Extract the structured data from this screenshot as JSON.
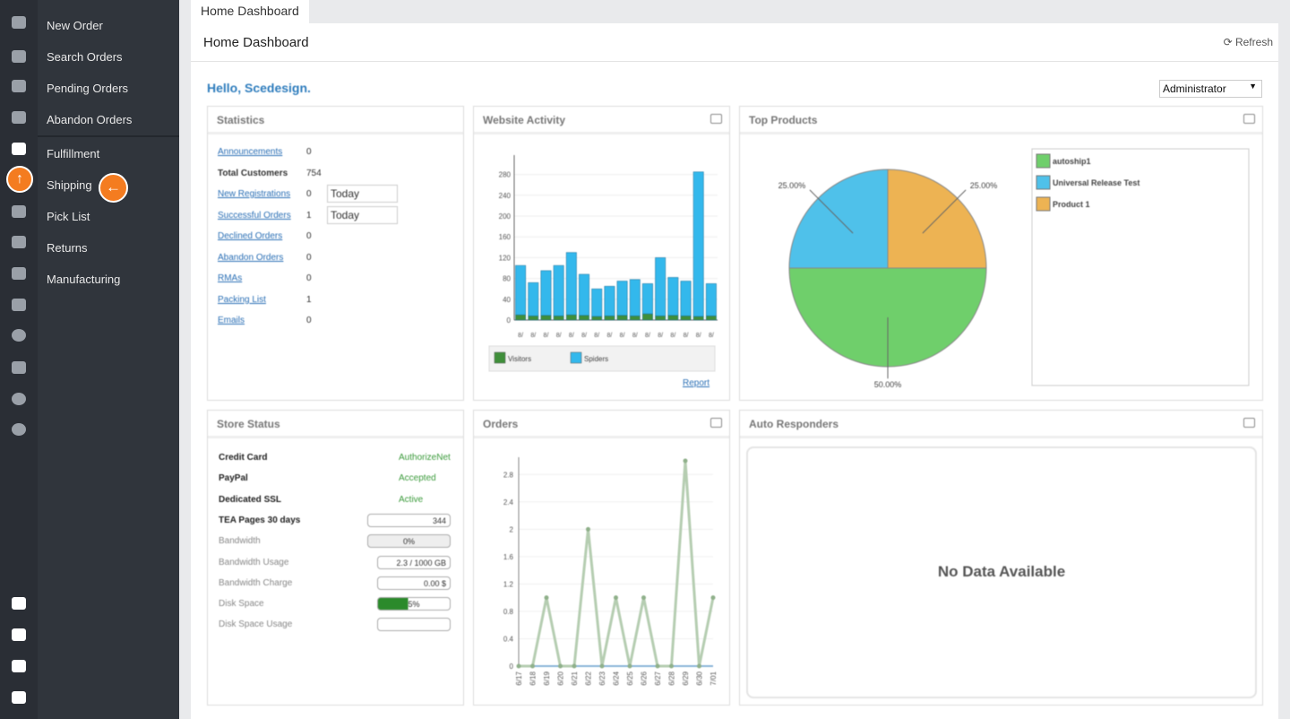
{
  "sidebar": {
    "menu": [
      "New Order",
      "Search Orders",
      "Pending Orders",
      "Abandon Orders",
      "Fulfillment",
      "Shipping",
      "Pick List",
      "Returns",
      "Manufacturing"
    ]
  },
  "tab": "Home Dashboard",
  "header": {
    "title": "Home Dashboard",
    "refresh": "Refresh"
  },
  "greeting": "Hello, Scedesign.",
  "role": "Administrator",
  "statistics": {
    "title": "Statistics",
    "rows": [
      {
        "label": "Announcements",
        "value": 0
      },
      {
        "label": "Total Customers",
        "value": 754
      },
      {
        "label": "New Registrations",
        "value": 0,
        "period": "Today"
      },
      {
        "label": "Successful Orders",
        "value": 1,
        "period": "Today"
      },
      {
        "label": "Declined Orders",
        "value": 0
      },
      {
        "label": "Abandon Orders",
        "value": 0
      },
      {
        "label": "RMAs",
        "value": 0
      },
      {
        "label": "Packing List",
        "value": 1
      },
      {
        "label": "Emails",
        "value": 0
      }
    ]
  },
  "website_activity": {
    "title": "Website Activity",
    "link": "Report",
    "chart_data": {
      "type": "bar",
      "stacked": true,
      "categories": [
        "8/",
        "8/",
        "8/",
        "8/",
        "8/",
        "8/",
        "8/",
        "8/",
        "8/",
        "8/",
        "8/",
        "8/",
        "8/",
        "8/",
        "8/",
        "8/"
      ],
      "series": [
        {
          "name": "Visitors",
          "color": "#3f8f3a",
          "values": [
            10,
            8,
            9,
            8,
            10,
            9,
            7,
            8,
            9,
            8,
            12,
            8,
            9,
            8,
            7,
            8
          ]
        },
        {
          "name": "Spiders",
          "color": "#33b8ec",
          "values": [
            95,
            64,
            86,
            97,
            120,
            79,
            53,
            57,
            66,
            70,
            58,
            112,
            73,
            67,
            278,
            62
          ]
        }
      ],
      "ylim": [
        0,
        300
      ],
      "yticks": [
        0,
        40,
        80,
        120,
        160,
        200,
        240,
        280
      ],
      "grid": true
    }
  },
  "top_products": {
    "title": "Top Products",
    "chart_data": {
      "type": "pie",
      "categories": [
        "autoship1",
        "Universal Release Test",
        "Product 1"
      ],
      "values": [
        50,
        25,
        25
      ],
      "value_labels": [
        "50.00%",
        "25.00%",
        "25.00%"
      ],
      "colors": [
        "#6fcf6b",
        "#4fc1ea",
        "#edb353"
      ]
    }
  },
  "store_status": {
    "title": "Store Status",
    "rows": [
      {
        "label": "Credit Card",
        "status": "AuthorizeNet"
      },
      {
        "label": "PayPal",
        "status": "Accepted"
      },
      {
        "label": "Dedicated SSL",
        "status": "Active"
      },
      {
        "label": "TEA Pages 30 days",
        "field": "344"
      },
      {
        "label": "Bandwidth",
        "field": "0%"
      },
      {
        "label": "Bandwidth Usage",
        "field": "2.3 / 1000 GB"
      },
      {
        "label": "Bandwidth Charge",
        "field": "0.00 $"
      },
      {
        "label": "Disk Space",
        "field": "5%"
      },
      {
        "label": "Disk Space Usage"
      }
    ]
  },
  "orders": {
    "title": "Orders",
    "chart_data": {
      "type": "line",
      "categories": [
        "6/17",
        "6/18",
        "6/19",
        "6/20",
        "6/21",
        "6/22",
        "6/23",
        "6/24",
        "6/25",
        "6/26",
        "6/27",
        "6/28",
        "6/29",
        "6/30",
        "7/01"
      ],
      "series": [
        {
          "name": "Orders",
          "color": "#b5cdb1",
          "values": [
            0,
            0,
            1,
            0,
            0,
            2,
            0,
            1,
            0,
            1,
            0,
            0,
            3,
            0,
            1
          ]
        }
      ],
      "ylim": [
        0,
        3
      ],
      "yticks": [
        0,
        0.4,
        0.8,
        1.2,
        1.6,
        2,
        2.4,
        2.8
      ],
      "grid": true
    }
  },
  "auto_responders": {
    "title": "Auto Responders",
    "empty": "No Data Available"
  }
}
